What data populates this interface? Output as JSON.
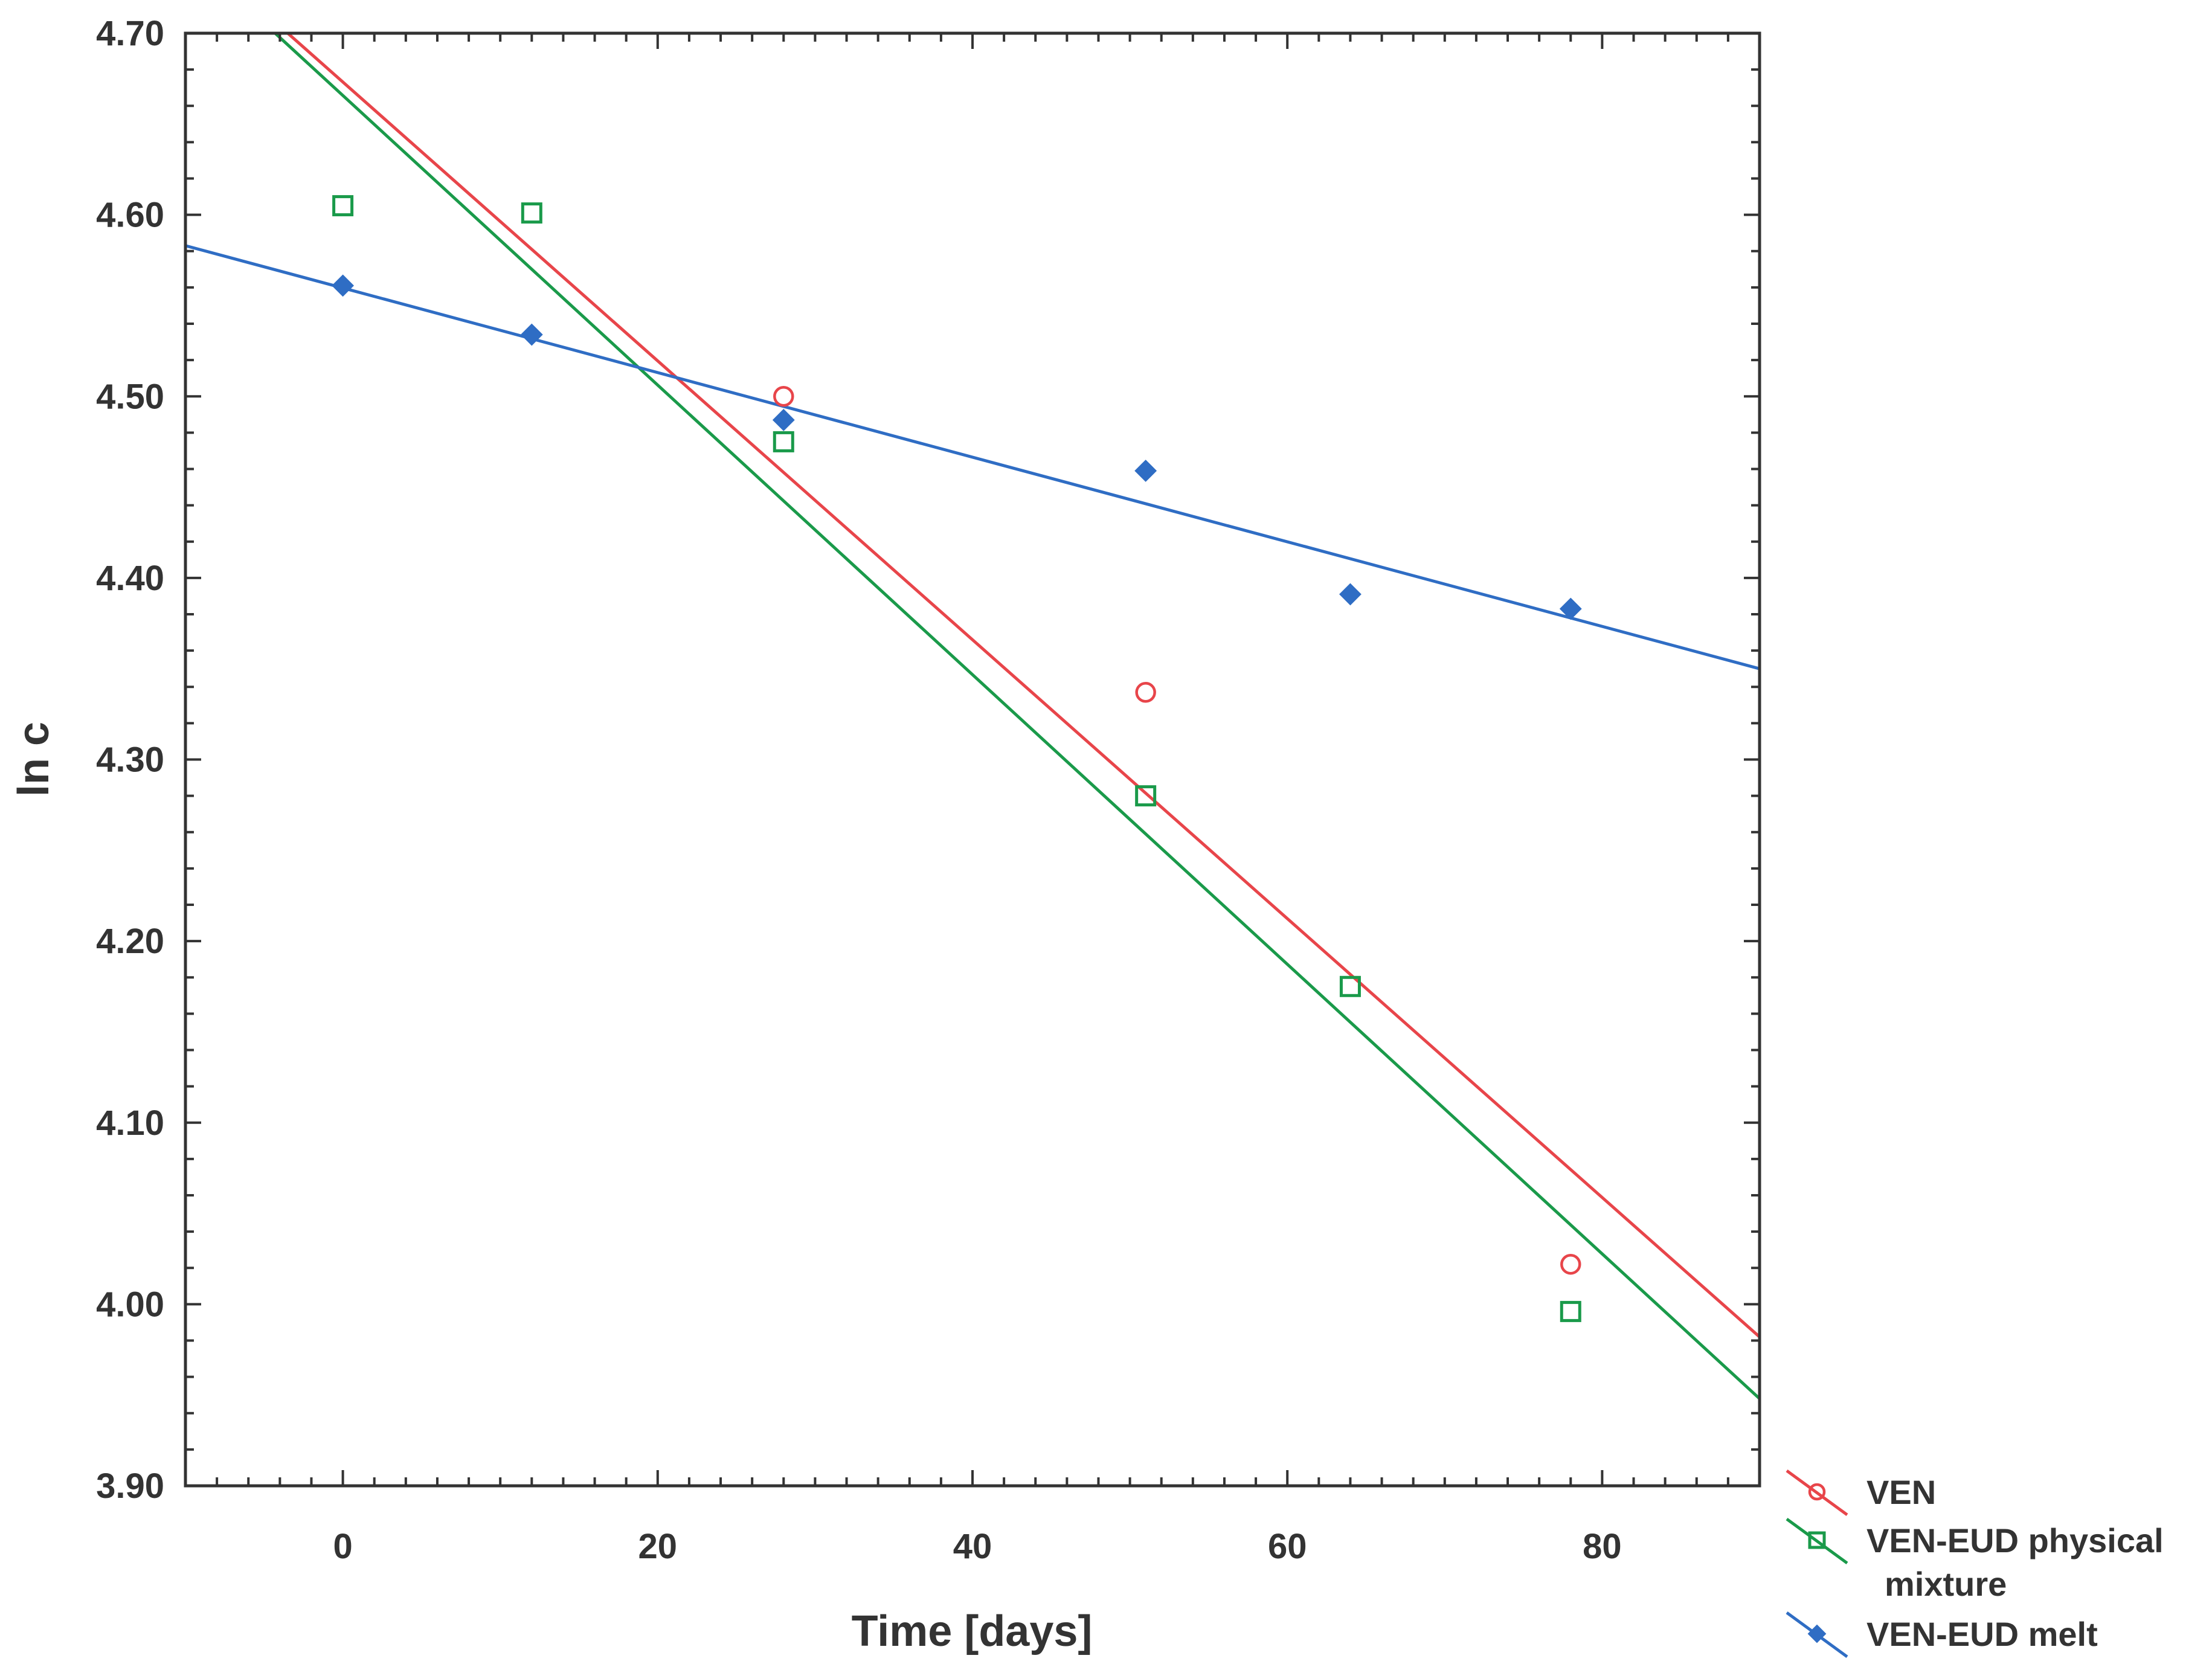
{
  "chart_data": {
    "type": "scatter",
    "title": "",
    "xlabel": "Time [days]",
    "ylabel": "ln c",
    "xlim": [
      -10,
      90
    ],
    "ylim": [
      3.9,
      4.7
    ],
    "x_ticks": [
      0,
      20,
      40,
      60,
      80
    ],
    "x_tick_labels": [
      "0",
      "20",
      "40",
      "60",
      "80"
    ],
    "y_ticks": [
      3.9,
      4.0,
      4.1,
      4.2,
      4.3,
      4.4,
      4.5,
      4.6,
      4.7
    ],
    "y_tick_labels": [
      "3.90",
      "4.00",
      "4.10",
      "4.20",
      "4.30",
      "4.40",
      "4.50",
      "4.60",
      "4.70"
    ],
    "grid": false,
    "legend_position": "bottom-right outside",
    "series": [
      {
        "name": "VEN",
        "legend_lines": [
          "VEN"
        ],
        "color": "#e8454a",
        "marker": "circle-open",
        "x": [
          28,
          51,
          78
        ],
        "y": [
          4.5,
          4.337,
          4.022
        ],
        "fit": {
          "x": [
            -3.5,
            90
          ],
          "y": [
            4.7,
            3.982
          ]
        }
      },
      {
        "name": "VEN-EUD physical mixture",
        "legend_lines": [
          "VEN-EUD physical",
          "mixture"
        ],
        "color": "#1a9a4a",
        "marker": "square-open",
        "x": [
          0,
          12,
          28,
          51,
          64,
          78
        ],
        "y": [
          4.605,
          4.601,
          4.475,
          4.28,
          4.175,
          3.996
        ],
        "fit": {
          "x": [
            -4.3,
            90
          ],
          "y": [
            4.7,
            3.948
          ]
        }
      },
      {
        "name": "VEN-EUD melt",
        "legend_lines": [
          "VEN-EUD melt"
        ],
        "color": "#2f6dc4",
        "marker": "diamond-filled",
        "x": [
          0,
          12,
          28,
          51,
          64,
          78
        ],
        "y": [
          4.561,
          4.534,
          4.487,
          4.459,
          4.391,
          4.383
        ],
        "fit": {
          "x": [
            -10,
            90
          ],
          "y": [
            4.583,
            4.35
          ]
        }
      }
    ]
  }
}
